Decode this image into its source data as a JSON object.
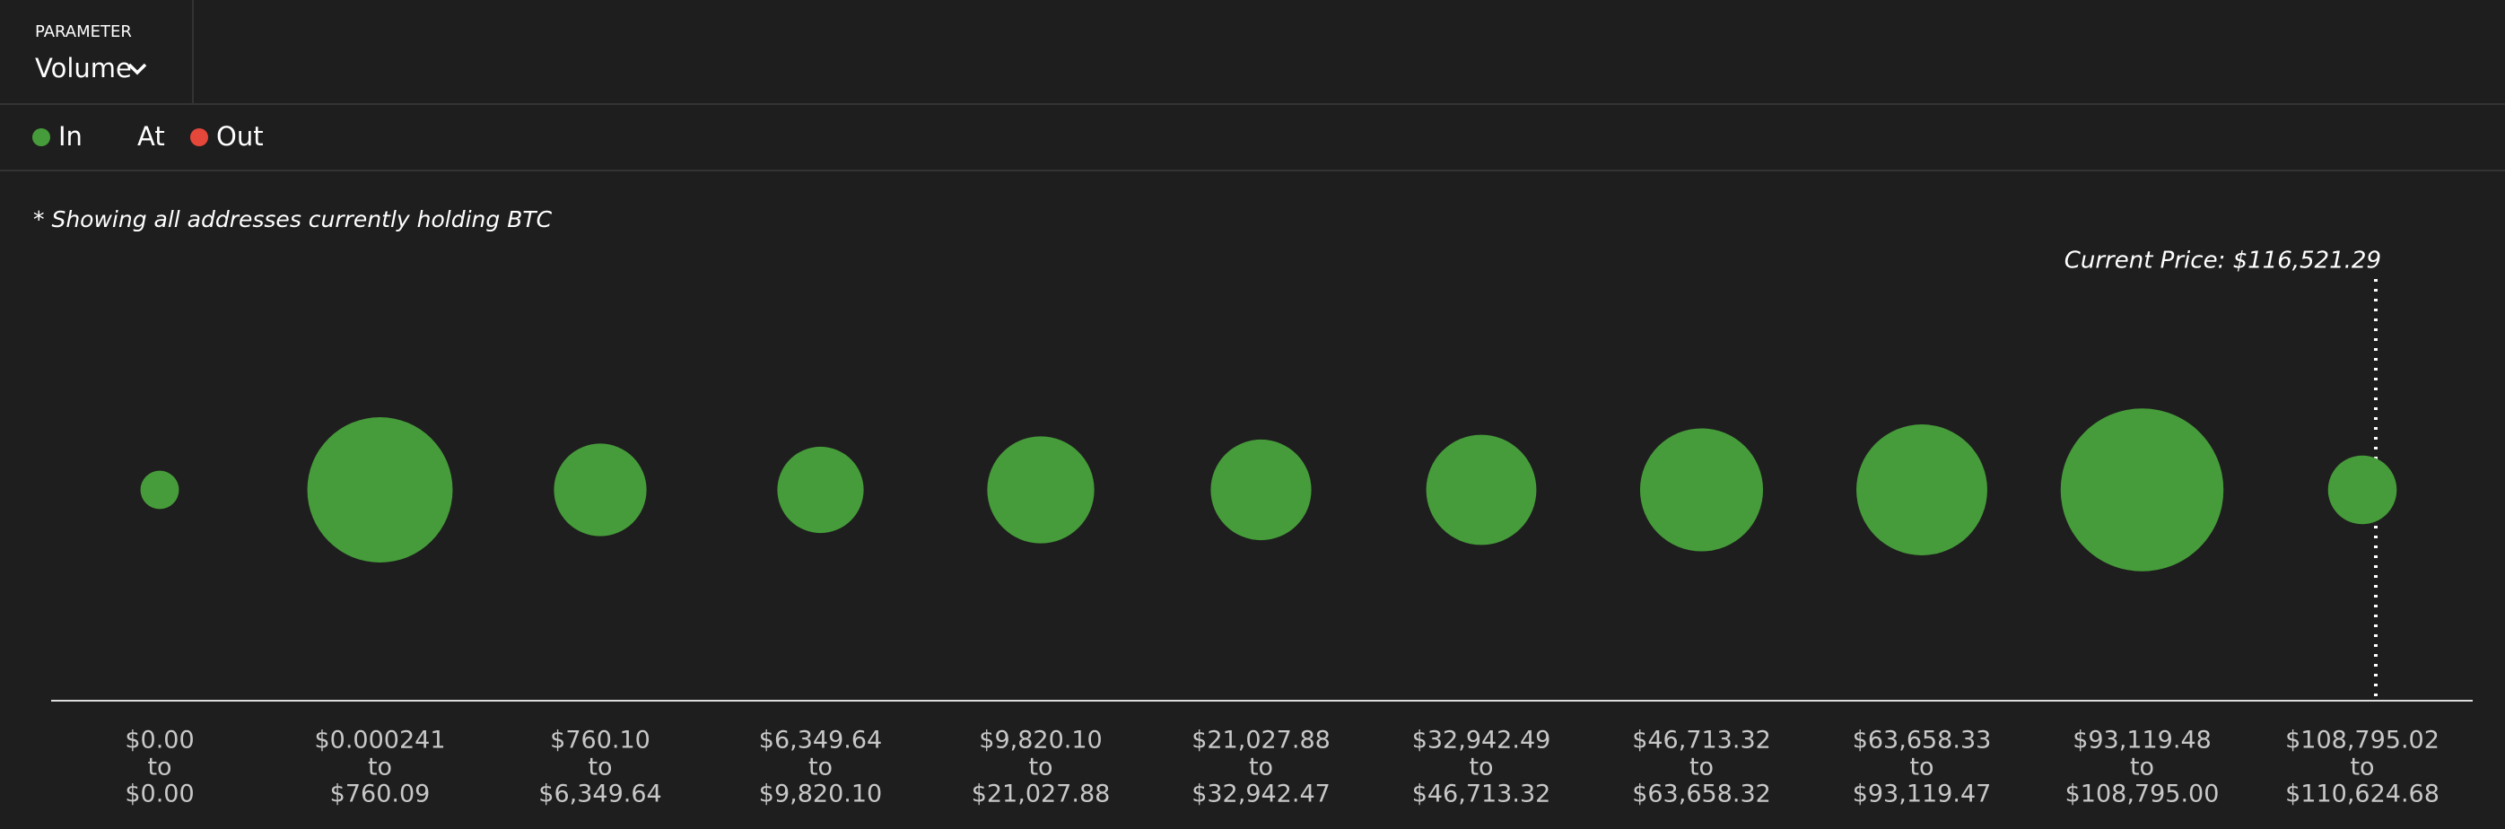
{
  "parameter_label": "PARAMETER",
  "parameter_value": "Volume",
  "chart_data": {
    "type": "bubble",
    "legend": [
      {
        "name": "In",
        "color": "#469c3a"
      },
      {
        "name": "At"
      },
      {
        "name": "Out",
        "color": "#e5473a"
      }
    ],
    "note": "* Showing all addresses currently holding BTC",
    "annotation": "Current Price: $116,521.29",
    "color": "#469c3a",
    "categories": [
      [
        "$0.00",
        "to",
        "$0.00"
      ],
      [
        "$0.000241",
        "to",
        "$760.09"
      ],
      [
        "$760.10",
        "to",
        "$6,349.64"
      ],
      [
        "$6,349.64",
        "to",
        "$9,820.10"
      ],
      [
        "$9,820.10",
        "to",
        "$21,027.88"
      ],
      [
        "$21,027.88",
        "to",
        "$32,942.47"
      ],
      [
        "$32,942.49",
        "to",
        "$46,713.32"
      ],
      [
        "$46,713.32",
        "to",
        "$63,658.32"
      ],
      [
        "$63,658.33",
        "to",
        "$93,119.47"
      ],
      [
        "$93,119.48",
        "to",
        "$108,795.00"
      ],
      [
        "$108,795.02",
        "to",
        "$110,624.68"
      ]
    ],
    "values": [
      5.8,
      82.8,
      33.6,
      29.2,
      44.9,
      39.7,
      47.6,
      59.3,
      67.2,
      104,
      18.5
    ]
  }
}
